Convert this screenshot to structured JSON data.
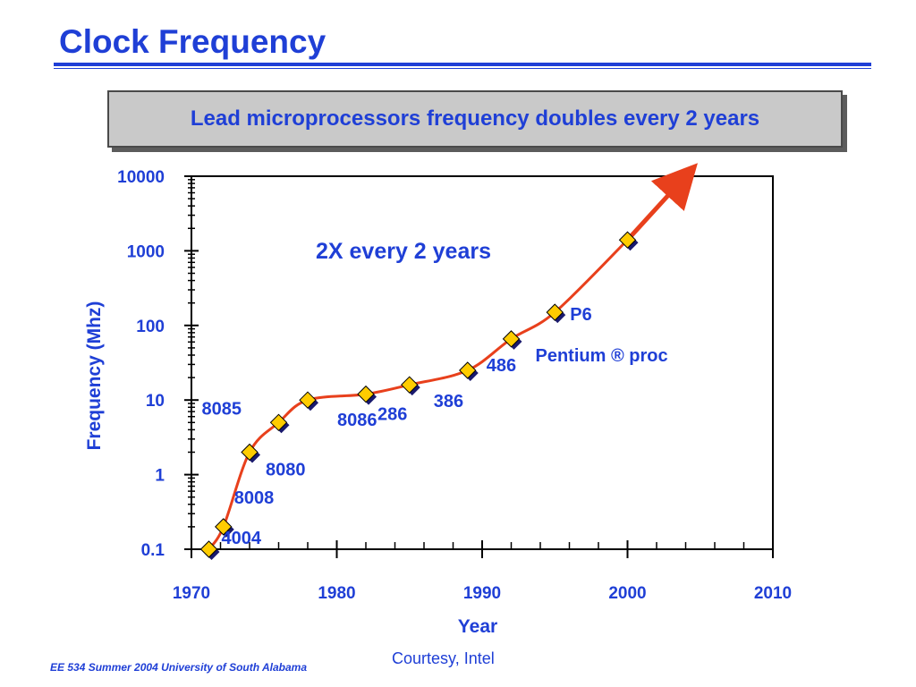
{
  "slide": {
    "title": "Clock Frequency",
    "banner": "Lead microprocessors frequency doubles every 2 years",
    "courtesy": "Courtesy, Intel",
    "footer": "EE 534 Summer 2004 University of South Alabama"
  },
  "colors": {
    "text_blue": "#1f3fd6",
    "line_red": "#e8401c",
    "marker_gold": "#ffcc00",
    "marker_shadow": "#1a1a6e",
    "banner_gray": "#c9c9c9"
  },
  "chart_data": {
    "type": "line",
    "xlabel": "Year",
    "ylabel": "Frequency (Mhz)",
    "xlim": [
      1970,
      2010
    ],
    "ylim": [
      0.1,
      10000
    ],
    "y_scale": "log",
    "x_tick_labels": [
      "1970",
      "1980",
      "1990",
      "2000",
      "2010"
    ],
    "y_tick_labels": [
      "10000",
      "1000",
      "100",
      "10",
      "1",
      "0.1"
    ],
    "annotation": "2X every 2 years",
    "series": [
      {
        "points": [
          {
            "x": 1971.2,
            "y": 0.1,
            "label": "4004"
          },
          {
            "x": 1972.2,
            "y": 0.2,
            "label": "8008"
          },
          {
            "x": 1974.0,
            "y": 2,
            "label": "8080"
          },
          {
            "x": 1976.0,
            "y": 5,
            "label": "8085"
          },
          {
            "x": 1978.0,
            "y": 10,
            "label": "8086"
          },
          {
            "x": 1982.0,
            "y": 12,
            "label": "286"
          },
          {
            "x": 1985.0,
            "y": 16,
            "label": "386"
          },
          {
            "x": 1989.0,
            "y": 25,
            "label": "486"
          },
          {
            "x": 1992.0,
            "y": 66,
            "label": "Pentium ® proc"
          },
          {
            "x": 1995.0,
            "y": 150,
            "label": "P6"
          },
          {
            "x": 2000.0,
            "y": 1400,
            "label": ""
          }
        ],
        "trend_arrow_to": {
          "x": 2004.0,
          "y": 10000
        }
      }
    ]
  }
}
